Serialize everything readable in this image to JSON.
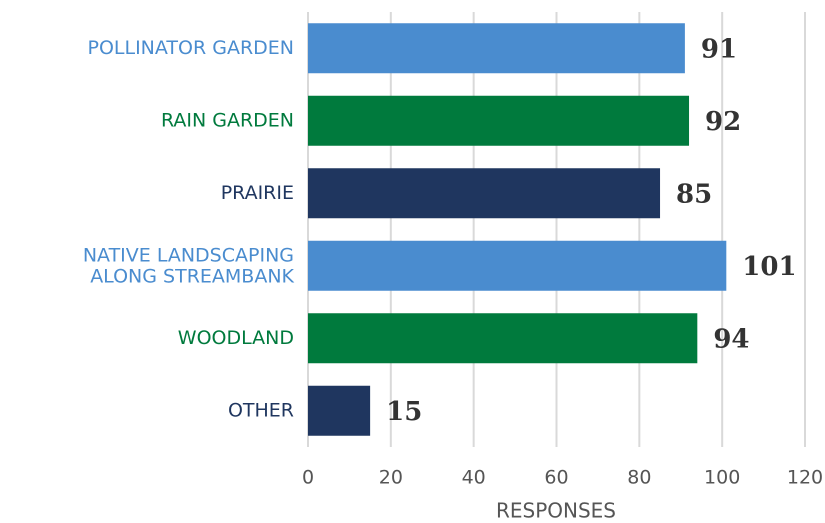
{
  "chart_data": {
    "type": "bar",
    "orientation": "horizontal",
    "categories": [
      "POLLINATOR GARDEN",
      "RAIN GARDEN",
      "PRAIRIE",
      "NATIVE LANDSCAPING\nALONG STREAMBANK",
      "WOODLAND",
      "OTHER"
    ],
    "values": [
      91,
      92,
      85,
      101,
      94,
      15
    ],
    "colors": [
      "#4a8ccf",
      "#007a3d",
      "#1f365f",
      "#4a8ccf",
      "#007a3d",
      "#1f365f"
    ],
    "xlabel": "RESPONSES",
    "xlim": [
      0,
      120
    ],
    "xticks": [
      0,
      20,
      40,
      60,
      80,
      100,
      120
    ],
    "grid": true
  }
}
